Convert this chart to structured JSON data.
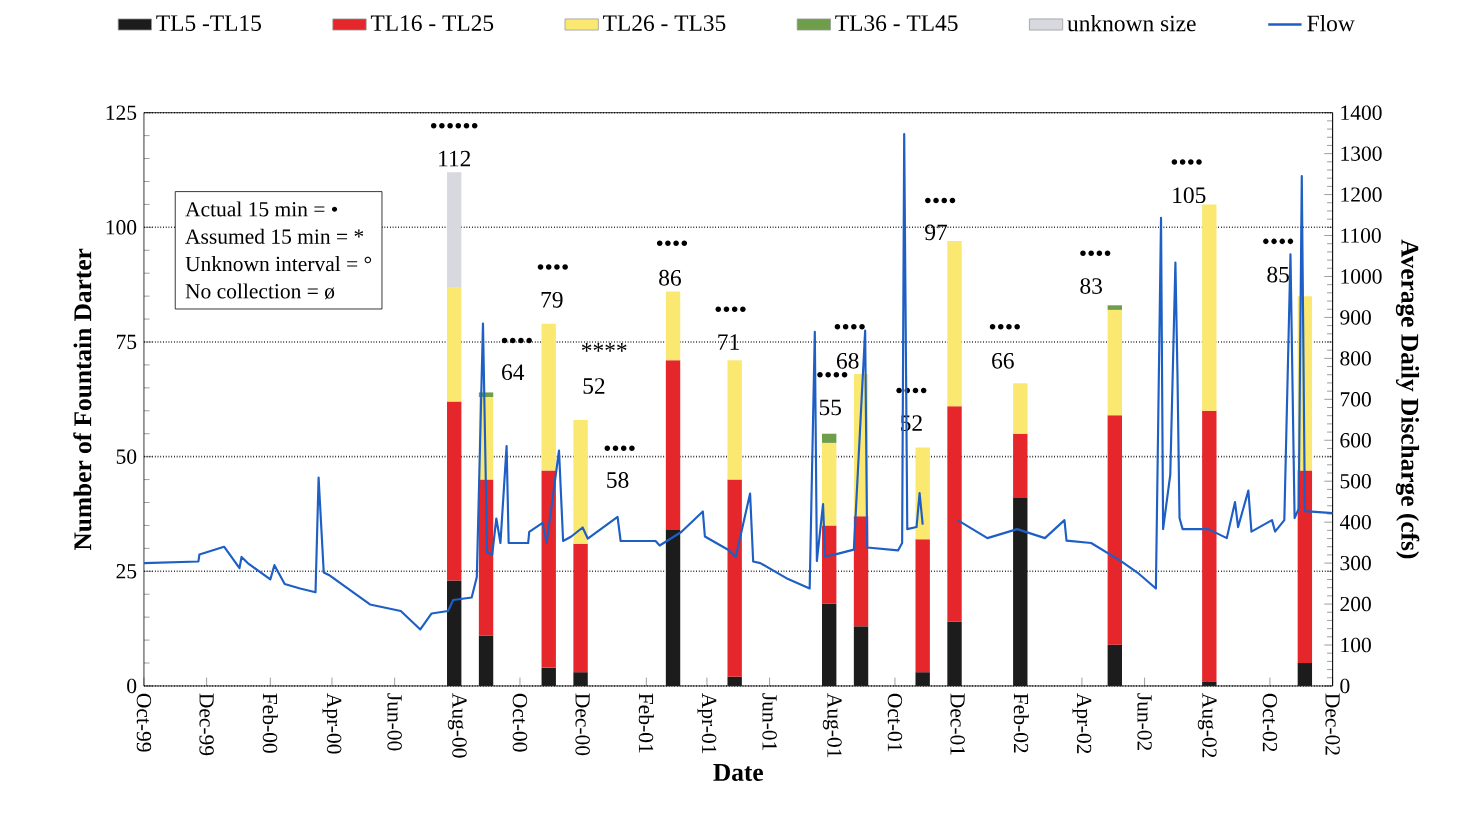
{
  "chart_data": {
    "type": "bar",
    "stacked": true,
    "xlabel": "Date",
    "ylabel": "Number of Fountain Darter",
    "y2label": "Average Daily Discharge (cfs)",
    "legend": "top",
    "grid": "y",
    "x": [
      "2000-07-29",
      "2000-08-29",
      "2000-10-29",
      "2000-11-29",
      "2001-02-27",
      "2001-04-28",
      "2001-07-29",
      "2001-08-29",
      "2001-10-28",
      "2001-11-28",
      "2002-01-31",
      "2002-05-03",
      "2002-08-03",
      "2002-11-04"
    ],
    "xlim": [
      "1999-10-01",
      "2002-12-01"
    ],
    "xticks": [
      {
        "value": "1999-10-01",
        "label": "Oct-99"
      },
      {
        "value": "1999-12-01",
        "label": "Dec-99"
      },
      {
        "value": "2000-02-01",
        "label": "Feb-00"
      },
      {
        "value": "2000-04-01",
        "label": "Apr-00"
      },
      {
        "value": "2000-06-01",
        "label": "Jun-00"
      },
      {
        "value": "2000-08-01",
        "label": "Aug-00"
      },
      {
        "value": "2000-10-01",
        "label": "Oct-00"
      },
      {
        "value": "2000-12-01",
        "label": "Dec-00"
      },
      {
        "value": "2001-02-01",
        "label": "Feb-01"
      },
      {
        "value": "2001-04-01",
        "label": "Apr-01"
      },
      {
        "value": "2001-06-01",
        "label": "Jun-01"
      },
      {
        "value": "2001-08-01",
        "label": "Aug-01"
      },
      {
        "value": "2001-10-01",
        "label": "Oct-01"
      },
      {
        "value": "2001-12-01",
        "label": "Dec-01"
      },
      {
        "value": "2002-02-01",
        "label": "Feb-02"
      },
      {
        "value": "2002-04-01",
        "label": "Apr-02"
      },
      {
        "value": "2002-06-01",
        "label": "Jun-02"
      },
      {
        "value": "2002-08-01",
        "label": "Aug-02"
      },
      {
        "value": "2002-10-01",
        "label": "Oct-02"
      },
      {
        "value": "2002-12-01",
        "label": "Dec-02"
      }
    ],
    "ylim": [
      0,
      125
    ],
    "yticks": [
      0,
      25,
      50,
      75,
      100,
      125
    ],
    "y2lim": [
      0,
      1400
    ],
    "y2ticks": [
      0,
      100,
      200,
      300,
      400,
      500,
      600,
      700,
      800,
      900,
      1000,
      1100,
      1200,
      1300,
      1400
    ],
    "series": [
      {
        "name": "TL5 -TL15",
        "color": "#1c1c1c",
        "values": [
          23,
          11,
          4,
          3,
          34,
          2,
          18,
          13,
          3,
          14,
          41,
          9,
          1,
          5
        ]
      },
      {
        "name": "TL16 - TL25",
        "color": "#e5262b",
        "values": [
          39,
          34,
          43,
          28,
          37,
          43,
          17,
          24,
          29,
          47,
          14,
          50,
          59,
          42
        ]
      },
      {
        "name": "TL26 - TL35",
        "color": "#fbe870",
        "values": [
          25,
          18,
          32,
          27,
          15,
          26,
          18,
          31,
          20,
          36,
          11,
          23,
          45,
          38
        ]
      },
      {
        "name": "TL36 - TL45",
        "color": "#6e9e4a",
        "values": [
          null,
          1,
          null,
          null,
          null,
          null,
          2,
          null,
          null,
          null,
          null,
          1,
          null,
          null
        ]
      },
      {
        "name": "unknown size",
        "color": "#d8d9de",
        "values": [
          25,
          null,
          null,
          null,
          null,
          null,
          null,
          null,
          null,
          null,
          null,
          null,
          null,
          null
        ]
      },
      {
        "name": "Flow",
        "type": "line",
        "axis": "y2",
        "color": "#1d5fc4",
        "x": [
          "1999-10-01",
          "1999-11-23",
          "1999-11-24",
          "1999-12-18",
          "2000-01-02",
          "2000-01-04",
          "2000-01-10",
          "2000-02-01",
          "2000-02-05",
          "2000-02-15",
          "2000-03-01",
          "2000-03-16",
          "2000-03-19",
          "2000-03-24",
          "2000-03-29",
          "2000-05-08",
          "2000-06-07",
          "2000-06-26",
          "2000-07-07",
          "2000-07-23",
          "2000-07-28",
          "2000-08-15",
          "2000-08-20",
          "2000-08-26",
          "2000-08-30",
          "2000-09-04",
          "2000-09-08",
          "2000-09-12",
          "2000-09-18",
          "2000-09-20",
          "2000-10-09",
          "2000-10-10",
          "2000-10-23",
          "2000-10-27",
          "2000-11-08",
          "2000-11-12",
          "2000-11-20",
          "2000-12-01",
          "2000-12-06",
          "2001-01-04",
          "2001-01-07",
          "2001-02-10",
          "2001-02-14",
          "2001-03-07",
          "2001-03-28",
          "2001-03-30",
          "2001-04-22",
          "2001-04-29",
          "2001-05-13",
          "2001-05-16",
          "2001-05-23",
          "2001-06-19",
          "2001-07-10",
          "2001-07-15",
          "2001-07-17",
          "2001-07-23",
          "2001-07-25",
          "2001-08-05",
          "2001-08-22",
          "2001-09-02",
          "2001-09-04",
          "2001-10-04",
          "2001-10-08",
          "2001-10-10",
          "2001-10-13",
          "2001-10-22",
          "2001-10-25",
          "2001-10-28",
          "2001-11-10",
          "2001-12-01",
          "2001-12-30",
          "2002-01-28",
          "2002-02-24",
          "2002-03-15",
          "2002-03-17",
          "2002-04-10",
          "2002-05-09",
          "2002-05-25",
          "2002-06-12",
          "2002-06-17",
          "2002-06-19",
          "2002-06-26",
          "2002-07-01",
          "2002-07-03",
          "2002-07-05",
          "2002-07-08",
          "2002-08-02",
          "2002-08-20",
          "2002-08-28",
          "2002-08-31",
          "2002-09-10",
          "2002-09-13",
          "2002-10-03",
          "2002-10-06",
          "2002-10-15",
          "2002-10-21",
          "2002-10-25",
          "2002-10-29",
          "2002-11-01",
          "2002-11-04",
          "2002-12-01"
        ],
        "values": [
          300,
          304,
          321,
          340,
          288,
          315,
          300,
          260,
          295,
          249,
          238,
          229,
          509,
          277,
          271,
          199,
          183,
          138,
          177,
          183,
          210,
          216,
          266,
          885,
          326,
          321,
          409,
          349,
          586,
          349,
          349,
          376,
          398,
          349,
          575,
          354,
          365,
          387,
          360,
          413,
          354,
          354,
          343,
          376,
          426,
          365,
          332,
          315,
          470,
          304,
          300,
          261,
          238,
          865,
          305,
          444,
          316,
          322,
          333,
          868,
          338,
          331,
          349,
          1348,
          383,
          388,
          471,
          394,
          null,
          405,
          361,
          383,
          361,
          405,
          355,
          349,
          305,
          277,
          238,
          1143,
          383,
          516,
          1034,
          760,
          410,
          383,
          383,
          361,
          449,
          388,
          477,
          377,
          405,
          377,
          405,
          1054,
          410,
          433,
          1245,
          427,
          422
        ]
      }
    ],
    "annotations": [
      "Actual 15 min = •",
      "Assumed 15 min = *",
      "Unknown interval = °",
      "No collection = ø",
      "••••••",
      "112",
      "••••",
      "64",
      "••••",
      "79",
      "****",
      "52",
      "••••",
      "58",
      "••••",
      "86",
      "••••",
      "71",
      "••••",
      "55",
      "••••",
      "68",
      "••••",
      "52",
      "••••",
      "97",
      "••••",
      "66",
      "••••",
      "83",
      "••••",
      "105",
      "••••",
      "85"
    ]
  }
}
